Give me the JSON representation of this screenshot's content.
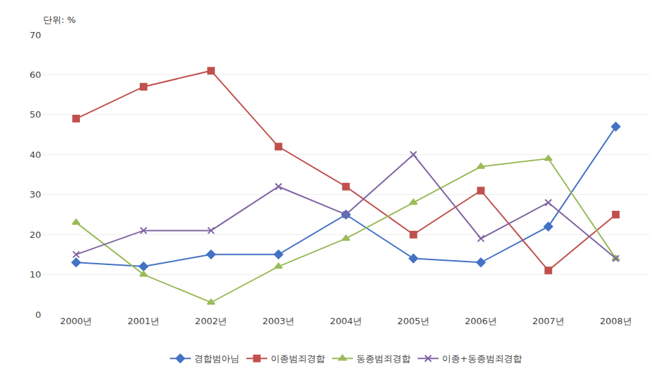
{
  "chart_data": {
    "type": "line",
    "subtitle": "단위: %",
    "categories": [
      "2000년",
      "2001년",
      "2002년",
      "2003년",
      "2004년",
      "2005년",
      "2006년",
      "2007년",
      "2008년"
    ],
    "series": [
      {
        "name": "경합범아님",
        "color": "#4472C4",
        "marker": "diamond",
        "values": [
          13,
          12,
          15,
          15,
          25,
          14,
          13,
          22,
          47
        ]
      },
      {
        "name": "이종범죄경합",
        "color": "#C0504D",
        "marker": "square",
        "values": [
          49,
          57,
          61,
          42,
          32,
          20,
          31,
          11,
          25
        ]
      },
      {
        "name": "동종범죄경합",
        "color": "#9BBB59",
        "marker": "triangle-up",
        "values": [
          23,
          10,
          3,
          12,
          19,
          28,
          37,
          39,
          14
        ]
      },
      {
        "name": "이종+동종범죄경합",
        "color": "#8064A2",
        "marker": "x",
        "values": [
          15,
          21,
          21,
          32,
          25,
          40,
          19,
          28,
          14
        ]
      }
    ],
    "ylim": [
      0,
      70
    ],
    "yticks": [
      0,
      10,
      20,
      30,
      40,
      50,
      60,
      70
    ],
    "grid": true,
    "legend": "bottom"
  }
}
